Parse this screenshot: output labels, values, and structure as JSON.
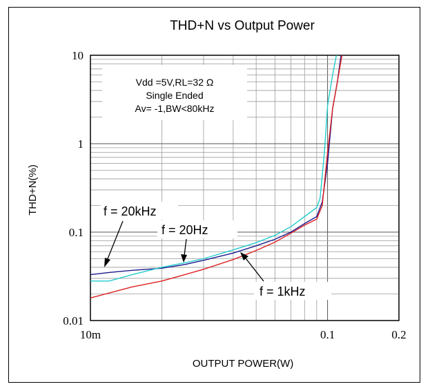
{
  "chart_data": {
    "type": "line",
    "title": "THD+N vs Output Power",
    "xlabel": "OUTPUT POWER(W)",
    "ylabel": "THD+N(%)",
    "x_scale": "log",
    "y_scale": "log",
    "xlim": [
      0.01,
      0.2
    ],
    "ylim": [
      0.01,
      10
    ],
    "x_tick_labels": [
      {
        "value": 0.01,
        "label": "10m"
      },
      {
        "value": 0.1,
        "label": "0.1"
      },
      {
        "value": 0.2,
        "label": "0.2"
      }
    ],
    "y_tick_labels": [
      {
        "value": 0.01,
        "label": "0.01"
      },
      {
        "value": 0.1,
        "label": "0.1"
      },
      {
        "value": 1,
        "label": "1"
      },
      {
        "value": 10,
        "label": "10"
      }
    ],
    "grid": true,
    "conditions": [
      "Vdd =5V,RL=32 Ω",
      "Single Ended",
      "Av= -1,BW<80kHz"
    ],
    "series": [
      {
        "name": "f = 20kHz",
        "color": "#1a1a8c",
        "x": [
          0.01,
          0.012,
          0.015,
          0.02,
          0.025,
          0.03,
          0.04,
          0.05,
          0.06,
          0.07,
          0.08,
          0.09,
          0.095,
          0.1,
          0.105,
          0.11,
          0.114
        ],
        "y": [
          0.033,
          0.035,
          0.037,
          0.039,
          0.043,
          0.048,
          0.058,
          0.07,
          0.083,
          0.1,
          0.125,
          0.15,
          0.22,
          0.6,
          2.5,
          5,
          10
        ]
      },
      {
        "name": "f = 20Hz",
        "color": "#22cccc",
        "x": [
          0.01,
          0.012,
          0.015,
          0.02,
          0.025,
          0.03,
          0.04,
          0.05,
          0.06,
          0.07,
          0.08,
          0.09,
          0.093,
          0.097,
          0.1,
          0.105,
          0.109
        ],
        "y": [
          0.028,
          0.028,
          0.033,
          0.04,
          0.045,
          0.05,
          0.063,
          0.076,
          0.092,
          0.115,
          0.15,
          0.19,
          0.24,
          0.8,
          2.7,
          6,
          10
        ]
      },
      {
        "name": "f = 1kHz",
        "color": "#dd2020",
        "x": [
          0.01,
          0.015,
          0.02,
          0.025,
          0.03,
          0.04,
          0.05,
          0.06,
          0.07,
          0.08,
          0.09,
          0.095,
          0.1,
          0.105,
          0.11,
          0.115
        ],
        "y": [
          0.018,
          0.024,
          0.028,
          0.033,
          0.038,
          0.049,
          0.062,
          0.077,
          0.097,
          0.12,
          0.14,
          0.2,
          0.8,
          2.5,
          5,
          10
        ]
      }
    ],
    "annotations": [
      "f = 20kHz",
      "f = 20Hz",
      "f = 1kHz"
    ]
  }
}
